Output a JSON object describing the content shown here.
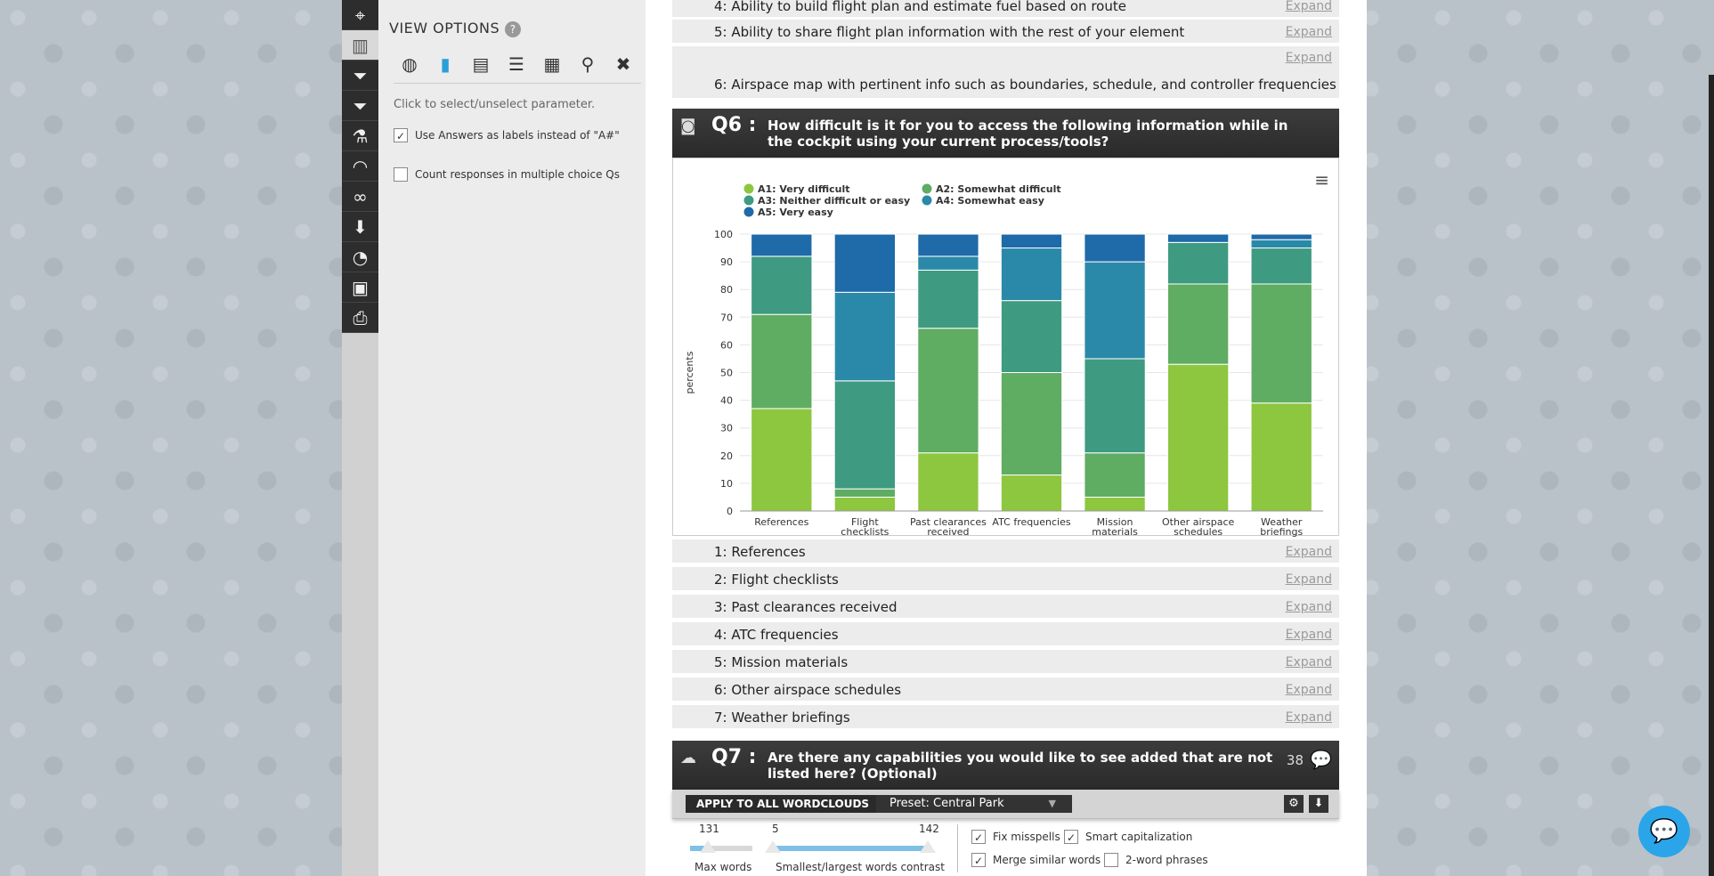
{
  "view_options": {
    "title": "VIEW OPTIONS",
    "help": "?",
    "chart_type_icons": [
      "donut-chart-icon",
      "bar-chart-icon",
      "stacked-bar-icon",
      "horizontal-bar-icon",
      "table-icon",
      "map-pin-icon",
      "close-icon"
    ],
    "hint": "Click to select/unselect parameter.",
    "use_answers_label": "Use Answers as labels instead of \"A#\"",
    "count_multiple_label": "Count responses in multiple choice Qs"
  },
  "prev_rows": [
    {
      "label": "4: Ability to build flight plan and estimate fuel based on route",
      "expand": "Expand"
    },
    {
      "label": "5: Ability to share flight plan information with the rest of your element",
      "expand": "Expand"
    },
    {
      "label": "",
      "expand": "Expand"
    },
    {
      "label": "6: Airspace map with pertinent info such as boundaries, schedule, and controller frequencies",
      "expand": ""
    }
  ],
  "q6": {
    "num": "Q6 :",
    "text": "How difficult is it for you to access the following information while in the cockpit using your current process/tools?",
    "rows": [
      {
        "label": "1: References",
        "expand": "Expand"
      },
      {
        "label": "2: Flight checklists",
        "expand": "Expand"
      },
      {
        "label": "3: Past clearances received",
        "expand": "Expand"
      },
      {
        "label": "4: ATC frequencies",
        "expand": "Expand"
      },
      {
        "label": "5: Mission materials",
        "expand": "Expand"
      },
      {
        "label": "6: Other airspace schedules",
        "expand": "Expand"
      },
      {
        "label": "7: Weather briefings",
        "expand": "Expand"
      }
    ]
  },
  "q7": {
    "num": "Q7 :",
    "text": "Are there any capabilities you would like to see added that are not listed here? (Optional)",
    "count": "38"
  },
  "wordcloud": {
    "apply_label": "APPLY TO ALL WORDCLOUDS",
    "preset_label": "Preset: Central Park",
    "max_words_value": "131",
    "max_words_label": "Max words",
    "max_words_fraction": 0.28,
    "contrast_min": "5",
    "contrast_max": "142",
    "contrast_label": "Smallest/largest words contrast",
    "fix_misspells": "Fix misspells",
    "smart_cap": "Smart capitalization",
    "merge_similar": "Merge similar words",
    "two_word": "2-word phrases"
  },
  "chart_data": {
    "type": "bar",
    "stacked": true,
    "ylabel": "percents",
    "ylim": [
      0,
      100
    ],
    "yticks": [
      0,
      10,
      20,
      30,
      40,
      50,
      60,
      70,
      80,
      90,
      100
    ],
    "categories": [
      [
        "References"
      ],
      [
        "Flight",
        "checklists"
      ],
      [
        "Past clearances",
        "received"
      ],
      [
        "ATC frequencies"
      ],
      [
        "Mission",
        "materials"
      ],
      [
        "Other airspace",
        "schedules"
      ],
      [
        "Weather",
        "briefings"
      ]
    ],
    "series": [
      {
        "name": "A1: Very difficult",
        "color": "#8dc63f",
        "values": [
          37,
          5,
          21,
          13,
          5,
          53,
          39
        ]
      },
      {
        "name": "A2: Somewhat difficult",
        "color": "#5fac63",
        "values": [
          34,
          3,
          45,
          37,
          16,
          29,
          43
        ]
      },
      {
        "name": "A3: Neither difficult or easy",
        "color": "#3e9a80",
        "values": [
          21,
          39,
          21,
          26,
          34,
          15,
          13
        ]
      },
      {
        "name": "A4: Somewhat easy",
        "color": "#2a89a8",
        "values": [
          0,
          32,
          5,
          19,
          35,
          0,
          3
        ]
      },
      {
        "name": "A5: Very easy",
        "color": "#1f6aa8",
        "values": [
          8,
          21,
          8,
          5,
          10,
          3,
          2
        ]
      }
    ],
    "legend_position": "top-left"
  }
}
